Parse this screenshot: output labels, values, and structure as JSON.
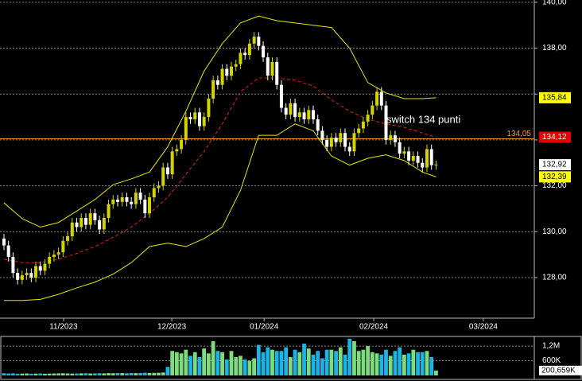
{
  "chart_data": [
    {
      "type": "candlestick",
      "xlim": [
        -0.87,
        116.6
      ],
      "xticks": [
        {
          "value": 13.1,
          "label": "11/2023"
        },
        {
          "value": 36.9,
          "label": "12/2023"
        },
        {
          "value": 57.2,
          "label": "01/2024"
        },
        {
          "value": 81.3,
          "label": "02/2024"
        },
        {
          "value": 105.4,
          "label": "03/2024"
        }
      ],
      "ylim": [
        126.23,
        140.1
      ],
      "yticks": [
        {
          "value": 140,
          "label": "140,00"
        },
        {
          "value": 138,
          "label": "138,00"
        },
        {
          "value": 136,
          "label": null
        },
        {
          "value": 134,
          "label": null
        },
        {
          "value": 132,
          "label": "132,00"
        },
        {
          "value": 130,
          "label": "130,00"
        },
        {
          "value": 128,
          "label": "128,00"
        }
      ],
      "grid": true,
      "up_color": "#d4d400",
      "down_color": "#ffffff",
      "open": [
        129.7,
        129.4,
        128.9,
        128.2,
        127.9,
        128.1,
        128.2,
        128.0,
        128.5,
        128.3,
        128.6,
        128.9,
        129.0,
        129.1,
        129.6,
        129.8,
        130.4,
        130.2,
        130.6,
        130.3,
        130.8,
        130.5,
        130.1,
        130.6,
        131.2,
        131.4,
        131.3,
        131.5,
        131.3,
        131.2,
        131.7,
        131.4,
        130.8,
        131.5,
        131.9,
        132.0,
        132.8,
        132.5,
        133.5,
        133.6,
        134.0,
        135.0,
        134.9,
        135.2,
        134.6,
        135.0,
        135.8,
        136.6,
        136.4,
        137.1,
        136.8,
        137.2,
        137.3,
        137.8,
        137.7,
        138.2,
        138.5,
        138.1,
        137.6,
        136.8,
        137.4,
        136.4,
        135.4,
        135.1,
        135.6,
        135.0,
        135.2,
        134.9,
        135.3,
        134.9,
        134.4,
        134.0,
        133.7,
        134.1,
        133.9,
        134.3,
        133.7,
        133.5,
        134.3,
        134.5,
        134.8,
        135.1,
        135.5,
        136.1,
        135.5,
        134.0,
        134.2,
        133.9,
        133.4,
        133.5,
        133.1,
        133.3,
        133.0,
        132.8,
        133.6,
        132.9
      ],
      "high": [
        129.9,
        129.6,
        129.1,
        128.4,
        128.3,
        128.4,
        128.4,
        128.7,
        128.7,
        128.8,
        129.1,
        129.2,
        129.3,
        129.8,
        130.0,
        130.6,
        130.6,
        130.8,
        130.8,
        131.0,
        131.0,
        130.7,
        130.8,
        131.4,
        131.6,
        131.6,
        131.7,
        131.7,
        131.5,
        131.9,
        131.9,
        131.6,
        131.7,
        132.1,
        132.2,
        133.0,
        133.0,
        133.7,
        133.8,
        134.2,
        135.2,
        135.2,
        135.4,
        135.4,
        135.2,
        136.0,
        136.8,
        136.8,
        137.3,
        137.3,
        137.4,
        137.5,
        138.0,
        138.0,
        138.4,
        138.7,
        138.7,
        138.3,
        137.8,
        137.6,
        137.6,
        136.6,
        135.6,
        135.8,
        135.8,
        135.4,
        135.4,
        135.5,
        135.5,
        135.1,
        134.6,
        134.2,
        134.3,
        134.3,
        134.5,
        134.5,
        133.9,
        134.5,
        134.7,
        135.0,
        135.3,
        135.7,
        136.3,
        136.3,
        135.7,
        134.4,
        134.4,
        134.1,
        133.7,
        133.7,
        133.5,
        133.5,
        133.2,
        133.8,
        133.8,
        133.1
      ],
      "low": [
        129.2,
        128.7,
        128.0,
        127.7,
        127.7,
        127.9,
        127.8,
        127.8,
        128.1,
        128.1,
        128.4,
        128.7,
        128.8,
        128.9,
        129.4,
        129.6,
        130.0,
        130.0,
        130.1,
        130.1,
        130.3,
        129.9,
        129.9,
        130.4,
        131.0,
        131.1,
        131.1,
        131.1,
        131.0,
        131.0,
        131.2,
        130.6,
        130.6,
        131.3,
        131.7,
        131.8,
        132.3,
        132.3,
        133.3,
        133.4,
        133.8,
        134.7,
        134.7,
        134.4,
        134.4,
        134.8,
        135.6,
        136.2,
        136.2,
        136.6,
        136.6,
        137.0,
        137.1,
        137.5,
        137.5,
        138.0,
        137.9,
        137.4,
        136.6,
        136.6,
        136.2,
        135.2,
        134.9,
        134.9,
        134.8,
        134.8,
        134.7,
        134.7,
        134.7,
        134.2,
        133.8,
        133.5,
        133.5,
        133.7,
        133.7,
        133.5,
        133.3,
        133.3,
        134.1,
        134.3,
        134.6,
        134.9,
        135.3,
        135.3,
        133.8,
        133.8,
        133.7,
        133.2,
        133.2,
        132.9,
        132.9,
        132.8,
        132.6,
        132.6,
        132.7,
        132.7
      ],
      "close": [
        129.4,
        128.9,
        128.2,
        127.9,
        128.1,
        128.2,
        128.0,
        128.5,
        128.3,
        128.6,
        128.9,
        129.0,
        129.1,
        129.6,
        129.8,
        130.4,
        130.2,
        130.6,
        130.3,
        130.8,
        130.5,
        130.1,
        130.6,
        131.2,
        131.4,
        131.3,
        131.5,
        131.3,
        131.2,
        131.7,
        131.4,
        130.8,
        131.5,
        131.9,
        132.0,
        132.8,
        132.5,
        133.5,
        133.6,
        134.0,
        135.0,
        134.9,
        135.2,
        134.6,
        135.0,
        135.8,
        136.6,
        136.4,
        137.1,
        136.8,
        137.2,
        137.3,
        137.8,
        137.7,
        138.2,
        138.5,
        138.1,
        137.6,
        136.8,
        137.4,
        136.4,
        135.4,
        135.1,
        135.6,
        135.0,
        135.2,
        134.9,
        135.3,
        134.9,
        134.4,
        134.0,
        133.7,
        134.1,
        133.9,
        134.3,
        133.7,
        133.5,
        134.3,
        134.5,
        134.8,
        135.1,
        135.5,
        136.1,
        135.5,
        134.0,
        134.2,
        133.9,
        133.4,
        133.5,
        133.1,
        133.3,
        133.0,
        132.8,
        133.6,
        132.9,
        132.92
      ],
      "bands": [
        {
          "color": "#e8e800",
          "dashed": false,
          "x": [
            0,
            4,
            8,
            12,
            16,
            20,
            24,
            28,
            32,
            36,
            40,
            44,
            48,
            52,
            56,
            60,
            64,
            68,
            72,
            76,
            80,
            84,
            88,
            92,
            95
          ],
          "values": [
            131.26,
            130.57,
            130.2,
            130.4,
            130.9,
            131.4,
            132.05,
            132.3,
            132.6,
            133.7,
            135.25,
            137.0,
            138.2,
            139.1,
            139.4,
            139.2,
            139.1,
            139.0,
            138.9,
            138.0,
            136.5,
            136.05,
            135.8,
            135.8,
            135.84
          ]
        },
        {
          "color": "#e02020",
          "dashed": true,
          "x": [
            0,
            4,
            8,
            12,
            16,
            20,
            24,
            28,
            32,
            36,
            40,
            44,
            48,
            52,
            56,
            60,
            64,
            68,
            72,
            76,
            80,
            84,
            88,
            92,
            95
          ],
          "values": [
            128.8,
            128.65,
            128.65,
            128.8,
            129.05,
            129.35,
            129.75,
            130.2,
            130.8,
            131.5,
            132.5,
            133.5,
            134.7,
            136.1,
            136.7,
            136.7,
            136.6,
            136.35,
            135.75,
            135.25,
            134.9,
            134.7,
            134.55,
            134.3,
            134.12
          ]
        },
        {
          "color": "#e8e800",
          "dashed": false,
          "x": [
            0,
            4,
            8,
            12,
            16,
            20,
            24,
            28,
            32,
            36,
            40,
            44,
            48,
            52,
            56,
            60,
            64,
            68,
            72,
            76,
            80,
            84,
            88,
            92,
            95
          ],
          "values": [
            127.0,
            127.0,
            127.05,
            127.27,
            127.55,
            127.8,
            128.15,
            128.65,
            129.35,
            129.5,
            129.35,
            129.7,
            130.2,
            131.8,
            134.2,
            134.2,
            134.7,
            134.4,
            133.3,
            132.9,
            133.2,
            133.35,
            133.1,
            132.6,
            132.39
          ]
        }
      ],
      "price_line": {
        "value": 134.05,
        "label": "134,05",
        "color": "#f0a030"
      },
      "markers": [
        {
          "value": 135.84,
          "label": "135,84",
          "color": "#ffff00",
          "text_color": "#000000"
        },
        {
          "value": 134.12,
          "label": "134,12",
          "color": "#e00000",
          "text_color": "#ffffff"
        },
        {
          "value": 132.92,
          "label": "132,92",
          "color": "#ffffff",
          "text_color": "#000000"
        },
        {
          "value": 132.39,
          "label": "132,39",
          "color": "#ffff00",
          "text_color": "#000000"
        }
      ],
      "annotation": "switch 134 punti"
    },
    {
      "type": "volume",
      "ylim": [
        0,
        1560000
      ],
      "yticks": [
        {
          "value": 1200000,
          "label": "1,2M"
        },
        {
          "value": 600000,
          "label": "600K"
        }
      ],
      "up_color": "#7ddc7d",
      "down_color": "#19b5e6",
      "values": [
        90000,
        80000,
        85000,
        70000,
        75000,
        80000,
        70000,
        75000,
        80000,
        70000,
        75000,
        80000,
        85000,
        90000,
        80000,
        75000,
        80000,
        85000,
        90000,
        80000,
        85000,
        90000,
        85000,
        95000,
        90000,
        100000,
        95000,
        90000,
        100000,
        95000,
        100000,
        110000,
        100000,
        105000,
        110000,
        120000,
        350000,
        1000000,
        950000,
        900000,
        1050000,
        800000,
        950000,
        750000,
        1100000,
        900000,
        1400000,
        1000000,
        950000,
        650000,
        1000000,
        750000,
        800000,
        650000,
        600000,
        700000,
        1250000,
        950000,
        1150000,
        1050000,
        1000000,
        1000000,
        1150000,
        750000,
        1050000,
        950000,
        1300000,
        1100000,
        850000,
        1000000,
        700000,
        1050000,
        1050000,
        1000000,
        1150000,
        850000,
        1500000,
        1400000,
        1000000,
        1050000,
        1200000,
        950000,
        900000,
        850000,
        1050000,
        800000,
        1000000,
        1150000,
        850000,
        900000,
        1050000,
        950000,
        950000,
        1000000,
        750000,
        200659
      ],
      "last_label": {
        "value": 200659,
        "label": "200,659K"
      }
    }
  ]
}
